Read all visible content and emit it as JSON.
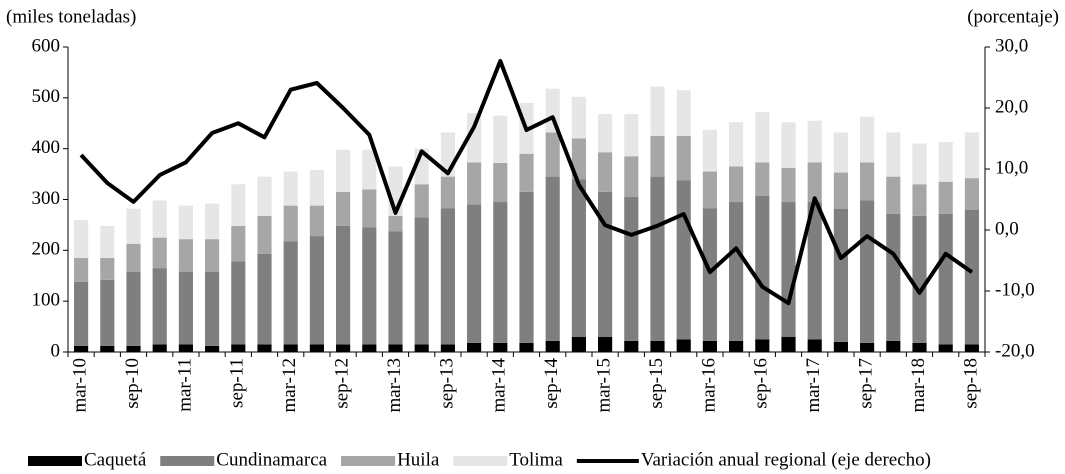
{
  "chart_data": {
    "type": "bar",
    "y_label": "(miles toneladas)",
    "y2_label": "(porcentaje)",
    "categories": [
      "mar-10",
      null,
      "sep-10",
      null,
      "mar-11",
      null,
      "sep-11",
      null,
      "mar-12",
      null,
      "sep-12",
      null,
      "mar-13",
      null,
      "sep-13",
      null,
      "mar-14",
      null,
      "sep-14",
      null,
      "mar-15",
      null,
      "sep-15",
      null,
      "mar-16",
      null,
      "sep-16",
      null,
      "mar-17",
      null,
      "sep-17",
      null,
      "mar-18",
      null,
      "sep-18"
    ],
    "stacked": true,
    "series": [
      {
        "name": "Caquetá",
        "color": "#000000",
        "values": [
          12,
          12,
          12,
          15,
          15,
          12,
          15,
          15,
          15,
          15,
          15,
          15,
          15,
          15,
          15,
          18,
          18,
          18,
          22,
          30,
          30,
          22,
          22,
          25,
          22,
          22,
          25,
          30,
          25,
          20,
          18,
          22,
          18,
          15,
          15
        ]
      },
      {
        "name": "Cundinamarca",
        "color": "#7f7f7f",
        "values": [
          126,
          130,
          146,
          150,
          143,
          146,
          163,
          178,
          203,
          213,
          233,
          230,
          222,
          250,
          268,
          272,
          277,
          297,
          323,
          310,
          285,
          283,
          323,
          313,
          261,
          273,
          282,
          265,
          270,
          262,
          280,
          250,
          250,
          257,
          265
        ]
      },
      {
        "name": "Huila",
        "color": "#a6a6a6",
        "values": [
          47,
          43,
          55,
          60,
          64,
          64,
          70,
          75,
          70,
          60,
          67,
          75,
          31,
          65,
          62,
          83,
          77,
          75,
          87,
          80,
          78,
          80,
          80,
          87,
          72,
          70,
          66,
          67,
          78,
          71,
          75,
          73,
          62,
          63,
          62
        ]
      },
      {
        "name": "Tolima",
        "color": "#e6e6e6",
        "values": [
          75,
          63,
          69,
          73,
          66,
          70,
          82,
          77,
          67,
          70,
          83,
          78,
          97,
          70,
          87,
          97,
          93,
          100,
          86,
          82,
          75,
          83,
          97,
          90,
          82,
          87,
          99,
          90,
          82,
          79,
          90,
          87,
          80,
          78,
          90
        ]
      },
      {
        "name": "Variación anual regional (eje derecho)",
        "type": "line",
        "axis": "y2",
        "color": "#000000",
        "values": [
          12.3,
          7.7,
          4.6,
          9.0,
          11.1,
          15.9,
          17.5,
          15.2,
          23.0,
          24.1,
          20.0,
          15.6,
          2.8,
          12.9,
          9.3,
          16.9,
          27.7,
          16.4,
          18.5,
          7.4,
          0.8,
          -0.8,
          0.7,
          2.6,
          -6.9,
          -3.0,
          -9.3,
          -12.0,
          5.2,
          -4.6,
          -1.0,
          -3.9,
          -10.3,
          -3.9,
          -6.9
        ]
      }
    ],
    "ylim": [
      0,
      600
    ],
    "yticks": [
      0,
      100,
      200,
      300,
      400,
      500,
      600
    ],
    "y2lim": [
      -20,
      30
    ],
    "y2ticks": [
      {
        "value": -20,
        "label": "-20,0"
      },
      {
        "value": -10,
        "label": "-10,0"
      },
      {
        "value": 0,
        "label": "0,0"
      },
      {
        "value": 10,
        "label": "10,0"
      },
      {
        "value": 20,
        "label": "20,0"
      },
      {
        "value": 30,
        "label": "30,0"
      }
    ],
    "legend": "bottom"
  }
}
